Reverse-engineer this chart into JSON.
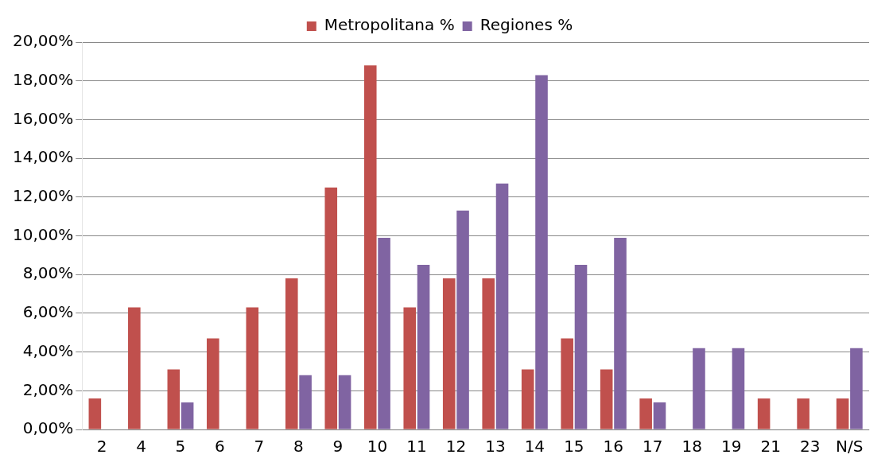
{
  "chart_data": {
    "type": "bar",
    "categories": [
      "2",
      "4",
      "5",
      "6",
      "7",
      "8",
      "9",
      "10",
      "11",
      "12",
      "13",
      "14",
      "15",
      "16",
      "17",
      "18",
      "19",
      "21",
      "23",
      "N/S"
    ],
    "series": [
      {
        "name": "Metropolitana %",
        "color": "#c0504d",
        "values": [
          1.6,
          6.3,
          3.1,
          4.7,
          6.3,
          7.8,
          12.5,
          18.8,
          6.3,
          7.8,
          7.8,
          3.1,
          4.7,
          3.1,
          1.6,
          0,
          0,
          1.6,
          1.6,
          1.6
        ]
      },
      {
        "name": "Regiones %",
        "color": "#8064a2",
        "values": [
          0,
          0,
          1.4,
          0,
          0,
          2.8,
          2.8,
          9.9,
          8.5,
          11.3,
          12.7,
          18.3,
          8.5,
          9.9,
          1.4,
          4.2,
          4.2,
          0,
          0,
          4.2
        ]
      }
    ],
    "ylim": [
      0,
      20
    ],
    "yticks": [
      {
        "value": 0,
        "label": "0,00%"
      },
      {
        "value": 2,
        "label": "2,00%"
      },
      {
        "value": 4,
        "label": "4,00%"
      },
      {
        "value": 6,
        "label": "6,00%"
      },
      {
        "value": 8,
        "label": "8,00%"
      },
      {
        "value": 10,
        "label": "10,00%"
      },
      {
        "value": 12,
        "label": "12,00%"
      },
      {
        "value": 14,
        "label": "14,00%"
      },
      {
        "value": 16,
        "label": "16,00%"
      },
      {
        "value": 18,
        "label": "18,00%"
      },
      {
        "value": 20,
        "label": "20,00%"
      }
    ],
    "grid": "y",
    "legend": "top"
  }
}
